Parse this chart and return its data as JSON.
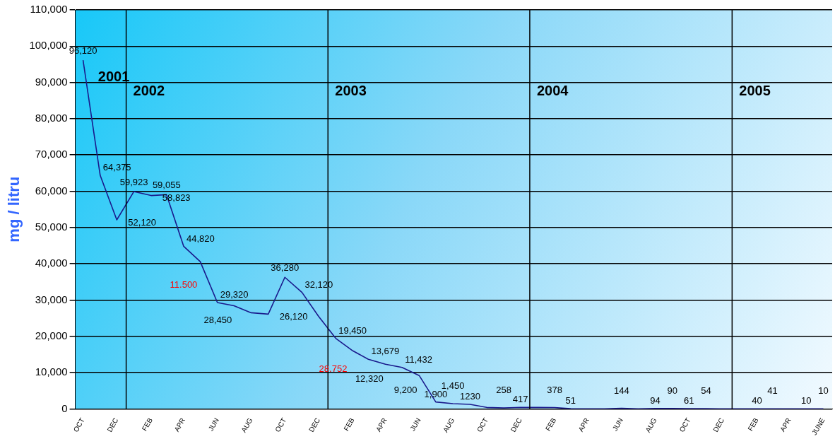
{
  "chart_data": {
    "type": "line",
    "ylabel": "mg / litru",
    "x": [
      "2001-10-15",
      "2001-11-15",
      "2001-12-15",
      "2002-01-15",
      "2002-02-15",
      "2002-03-15",
      "2002-04-15",
      "2002-05-15",
      "2002-06-15",
      "2002-07-15",
      "2002-08-15",
      "2002-09-15",
      "2002-10-15",
      "2002-11-15",
      "2002-12-15",
      "2003-01-15",
      "2003-02-15",
      "2003-03-15",
      "2003-04-15",
      "2003-05-15",
      "2003-06-15",
      "2003-07-15",
      "2003-08-15",
      "2003-09-15",
      "2003-10-15",
      "2003-11-15",
      "2003-12-15",
      "2004-01-15",
      "2004-02-15",
      "2004-03-15",
      "2004-04-15",
      "2004-05-15",
      "2004-06-15",
      "2004-07-15",
      "2004-08-15",
      "2004-09-15",
      "2004-10-15",
      "2004-11-15",
      "2004-12-15",
      "2005-01-15",
      "2005-02-15",
      "2005-03-15",
      "2005-04-15",
      "2005-05-15",
      "2005-06-15"
    ],
    "series": [
      {
        "color": "#1a1a8c",
        "values": [
          96120,
          64375,
          52120,
          59923,
          58823,
          59055,
          44820,
          40600,
          29320,
          28450,
          26500,
          26120,
          36280,
          32120,
          25500,
          19450,
          16000,
          13679,
          12320,
          11432,
          9200,
          1900,
          1450,
          1230,
          400,
          258,
          417,
          400,
          378,
          51,
          0,
          0,
          144,
          0,
          94,
          90,
          61,
          54,
          0,
          0,
          40,
          41,
          0,
          10,
          10
        ],
        "value_labels": [
          "96,120",
          "64,375",
          "52,120",
          "59,923",
          "58,823",
          "59,055",
          "44,820",
          null,
          "29,320",
          "28,450",
          null,
          "26,120",
          "36,280",
          "32,120",
          null,
          "19,450",
          null,
          "13,679",
          "12,320",
          "11,432",
          "9,200",
          "1,900",
          "1,450",
          "1230",
          null,
          "258",
          "417",
          null,
          "378",
          "51",
          null,
          null,
          "144",
          null,
          "94",
          "90",
          "61",
          "54",
          null,
          null,
          "40",
          "41",
          null,
          "10",
          "10"
        ]
      }
    ],
    "xlim": [
      "2001-10-01",
      "2005-07-01"
    ],
    "xticks": [
      {
        "value": "2001-10-15",
        "label": "OCT"
      },
      {
        "value": "2001-12-15",
        "label": "DEC"
      },
      {
        "value": "2002-02-15",
        "label": "FEB"
      },
      {
        "value": "2002-04-15",
        "label": "APR"
      },
      {
        "value": "2002-06-15",
        "label": "JUN"
      },
      {
        "value": "2002-08-15",
        "label": "AUG"
      },
      {
        "value": "2002-10-15",
        "label": "OCT"
      },
      {
        "value": "2002-12-15",
        "label": "DEC"
      },
      {
        "value": "2003-02-15",
        "label": "FEB"
      },
      {
        "value": "2003-04-15",
        "label": "APR"
      },
      {
        "value": "2003-06-15",
        "label": "JUN"
      },
      {
        "value": "2003-08-15",
        "label": "AUG"
      },
      {
        "value": "2003-10-15",
        "label": "OCT"
      },
      {
        "value": "2003-12-15",
        "label": "DEC"
      },
      {
        "value": "2004-02-15",
        "label": "FEB"
      },
      {
        "value": "2004-04-15",
        "label": "APR"
      },
      {
        "value": "2004-06-15",
        "label": "JUN"
      },
      {
        "value": "2004-08-15",
        "label": "AUG"
      },
      {
        "value": "2004-10-15",
        "label": "OCT"
      },
      {
        "value": "2004-12-15",
        "label": "DEC"
      },
      {
        "value": "2005-02-15",
        "label": "FEB"
      },
      {
        "value": "2005-04-15",
        "label": "APR"
      },
      {
        "value": "2005-06-15",
        "label": "JUNE"
      }
    ],
    "ylim": [
      0,
      110000
    ],
    "yticks": [
      0,
      {
        "value": 10000,
        "label": "10,000"
      },
      {
        "value": 20000,
        "label": "20,000"
      },
      {
        "value": 30000,
        "label": "30,000"
      },
      {
        "value": 40000,
        "label": "40,000"
      },
      {
        "value": 50000,
        "label": "50,000"
      },
      {
        "value": 60000,
        "label": "60,000"
      },
      {
        "value": 70000,
        "label": "70,000"
      },
      {
        "value": 80000,
        "label": "80,000"
      },
      {
        "value": 90000,
        "label": "90,000"
      },
      {
        "value": 100000,
        "label": "100,000"
      },
      {
        "value": 110000,
        "label": "110,000"
      }
    ],
    "grid": "y",
    "legend": false,
    "marker": "none",
    "line_style": "solid",
    "ref_lines": [
      {
        "axis": "x",
        "value": "2002-01-01",
        "label": "2002"
      },
      {
        "axis": "x",
        "value": "2003-01-01",
        "label": "2003"
      },
      {
        "axis": "x",
        "value": "2004-01-01",
        "label": "2004"
      },
      {
        "axis": "x",
        "value": "2005-01-01",
        "label": "2005"
      }
    ],
    "annotations": [
      "2001",
      "11.500",
      "28.752"
    ]
  }
}
